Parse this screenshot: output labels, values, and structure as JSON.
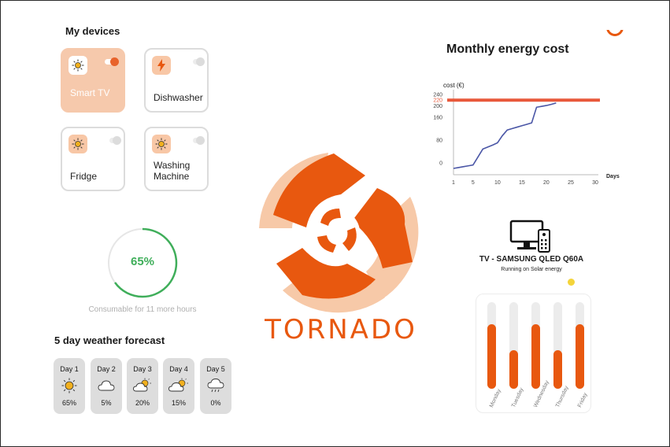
{
  "devices": {
    "title": "My devices",
    "items": [
      {
        "label": "Smart TV",
        "icon": "sun-icon",
        "active": true
      },
      {
        "label": "Dishwasher",
        "icon": "bolt-icon",
        "active": false
      },
      {
        "label": "Fridge",
        "icon": "sun-icon",
        "active": false
      },
      {
        "label": "Washing Machine",
        "icon": "sun-icon",
        "active": false
      }
    ]
  },
  "battery": {
    "percent_label": "65%",
    "level": 0.65,
    "caption": "Consumable for 11 more hours"
  },
  "weather": {
    "title": "5 day weather forecast",
    "days": [
      {
        "day": "Day 1",
        "pct": "65%",
        "icon": "sun-icon"
      },
      {
        "day": "Day 2",
        "pct": "5%",
        "icon": "cloud-icon"
      },
      {
        "day": "Day 3",
        "pct": "20%",
        "icon": "partly-cloudy-icon"
      },
      {
        "day": "Day 4",
        "pct": "15%",
        "icon": "partly-cloudy-icon"
      },
      {
        "day": "Day 5",
        "pct": "0%",
        "icon": "rain-cloud-icon"
      }
    ]
  },
  "brand": {
    "name": "TORNADO",
    "color": "#e8580f",
    "light_color": "#f7c9a8"
  },
  "chart_data": {
    "type": "line",
    "title": "Monthly energy cost",
    "ylabel": "cost (€)",
    "xlabel": "Days",
    "xticks": [
      "1",
      "5",
      "10",
      "15",
      "20",
      "25",
      "30"
    ],
    "yticks": [
      "0",
      "80",
      "160",
      "200",
      "240"
    ],
    "threshold": 220,
    "threshold_label": "220",
    "threshold_color": "#e8583a",
    "line_color": "#4a56a6",
    "series": [
      {
        "x": [
          1,
          2,
          3,
          4,
          5,
          6,
          7,
          8,
          9,
          10,
          11,
          12,
          13,
          14,
          15,
          16,
          17,
          18,
          19,
          20,
          21,
          22
        ],
        "y": [
          -20,
          -17,
          -14,
          -11,
          -8,
          20,
          48,
          55,
          62,
          70,
          95,
          115,
          120,
          125,
          130,
          135,
          140,
          195,
          198,
          201,
          205,
          210
        ]
      }
    ]
  },
  "tv": {
    "name": "TV - SAMSUNG QLED Q60A",
    "status": "Running on Solar energy",
    "icon": "tv-remote-icon"
  },
  "usage": {
    "days": [
      "Monday",
      "Tuesday",
      "Wednesday",
      "Thursday",
      "Friday"
    ],
    "values": [
      0.75,
      0.45,
      0.75,
      0.45,
      0.75
    ]
  }
}
